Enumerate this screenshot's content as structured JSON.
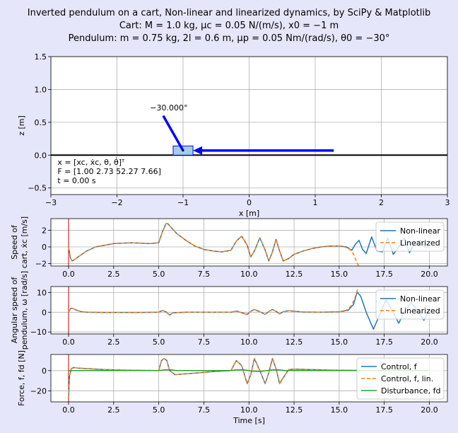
{
  "figure": {
    "title_lines": [
      "Inverted pendulum on a cart, Non-linear and linearized dynamics, by SciPy & Matplotlib",
      "Cart: M = 1.0 kg, μc = 0.05 N/(m/s), x0 = −1 m",
      "Pendulum: m = 0.75 kg, 2l = 0.6 m, μp = 0.05 Nm/(rad/s), θ0 = −30°"
    ],
    "background": "#e6e6fa"
  },
  "chart_data": [
    {
      "type": "scatter",
      "name": "scene",
      "xlabel": "x [m]",
      "ylabel": "z [m]",
      "xlim": [
        -3,
        3
      ],
      "ylim": [
        -0.6,
        1.5
      ],
      "xticks": [
        -3,
        -2,
        -1,
        0,
        1,
        2,
        3
      ],
      "yticks": [
        -0.5,
        0.0,
        0.5,
        1.0,
        1.5
      ],
      "xtick_labels": [
        "−3",
        "−2",
        "−1",
        "0",
        "1",
        "2",
        "3"
      ],
      "ytick_labels": [
        "−0.5",
        "0.0",
        "0.5",
        "1.0",
        "1.5"
      ],
      "grid": true,
      "cart": {
        "x": -1.0,
        "z": 0.07,
        "width": 0.3,
        "height": 0.14,
        "fill": "#a6cee3",
        "edge": "#0000ff"
      },
      "pendulum": {
        "pivot": [
          -1.0,
          0.07
        ],
        "tip": [
          -1.3,
          0.6
        ],
        "color": "#0000ff"
      },
      "angle_label": {
        "text": "−30.000°",
        "x": -1.5,
        "z": 0.68
      },
      "force_arrow": {
        "from": [
          1.28,
          0.07
        ],
        "to": [
          -0.85,
          0.07
        ],
        "color": "#0000ff"
      },
      "state_text": [
        "x = [xc, ẋc, θ, θ̇]ᵀ",
        "F = [1.00 2.73 52.27 7.66]",
        "t = 0.00 s"
      ],
      "state_text_pos": [
        -2.9,
        -0.15
      ]
    },
    {
      "type": "line",
      "name": "cart-speed",
      "ylabel_lines": [
        "Speed of",
        "cart, ẋc [m/s]"
      ],
      "xlim": [
        -0.98,
        21.0
      ],
      "ylim": [
        -2.3,
        3.4
      ],
      "xticks": [
        0.0,
        2.5,
        5.0,
        7.5,
        10.0,
        12.5,
        15.0,
        17.5,
        20.0
      ],
      "xtick_labels": [
        "0.0",
        "2.5",
        "5.0",
        "7.5",
        "10.0",
        "12.5",
        "15.0",
        "17.5",
        "20.0"
      ],
      "yticks": [
        -2,
        0,
        2
      ],
      "ytick_labels": [
        "−2",
        "0",
        "2"
      ],
      "grid": true,
      "legend": "right",
      "vline": 0,
      "series": [
        {
          "name": "Non-linear",
          "color": "#1f77b4",
          "dash": "solid",
          "x": [
            0,
            0.1,
            0.2,
            0.35,
            0.6,
            1.0,
            1.5,
            2.5,
            3.5,
            4.5,
            5.0,
            5.2,
            5.4,
            5.5,
            5.7,
            6.0,
            6.5,
            7.0,
            7.5,
            8.0,
            8.5,
            9.0,
            9.3,
            9.6,
            9.9,
            10.1,
            10.3,
            10.6,
            10.9,
            11.1,
            11.3,
            11.5,
            11.7,
            11.9,
            12.2,
            12.5,
            13.0,
            13.5,
            14.0,
            14.5,
            15.0,
            15.4,
            15.7,
            15.9,
            16.1,
            16.3,
            16.5,
            16.8,
            17.1,
            17.4,
            17.7,
            18.0,
            18.3,
            18.6,
            18.9,
            19.2,
            19.5,
            19.8,
            20.0
          ],
          "y": [
            0,
            -1.3,
            -1.7,
            -1.5,
            -1.1,
            -0.5,
            0.0,
            0.4,
            0.5,
            0.4,
            0.5,
            1.8,
            2.8,
            2.8,
            2.3,
            1.6,
            0.8,
            0.1,
            -0.3,
            -0.5,
            -0.6,
            -0.4,
            0.7,
            1.3,
            0.2,
            -1.2,
            -0.5,
            1.1,
            -0.4,
            -1.7,
            -0.6,
            0.9,
            -0.5,
            -1.7,
            -1.4,
            -0.9,
            -0.5,
            -0.2,
            0.0,
            0.1,
            0.1,
            0.0,
            -0.4,
            0.3,
            0.8,
            -0.3,
            -0.8,
            1.2,
            -0.5,
            -0.6,
            1.1,
            -0.9,
            0.0,
            1.0,
            -0.7,
            0.5,
            0.8,
            -0.1,
            0.1
          ]
        },
        {
          "name": "Linearized",
          "color": "#ff7f0e",
          "dash": "5,3",
          "x": [
            0,
            0.1,
            0.2,
            0.35,
            0.6,
            1.0,
            1.5,
            2.5,
            3.5,
            4.5,
            5.0,
            5.2,
            5.4,
            5.5,
            5.7,
            6.0,
            6.5,
            7.0,
            7.5,
            8.0,
            8.5,
            9.0,
            9.3,
            9.6,
            9.9,
            10.1,
            10.3,
            10.6,
            10.9,
            11.1,
            11.3,
            11.5,
            11.7,
            11.9,
            12.2,
            12.5,
            13.0,
            13.5,
            14.0,
            14.5,
            15.0,
            15.3,
            15.6,
            15.8,
            15.95,
            16.1
          ],
          "y": [
            0,
            -1.3,
            -1.7,
            -1.5,
            -1.1,
            -0.5,
            0.0,
            0.4,
            0.5,
            0.4,
            0.5,
            1.8,
            2.8,
            2.8,
            2.3,
            1.6,
            0.8,
            0.1,
            -0.3,
            -0.5,
            -0.6,
            -0.4,
            0.7,
            1.3,
            0.2,
            -1.2,
            -0.5,
            1.1,
            -0.4,
            -1.7,
            -0.6,
            0.9,
            -0.5,
            -1.7,
            -1.4,
            -0.9,
            -0.5,
            -0.2,
            0.0,
            0.1,
            0.1,
            0.0,
            -0.3,
            -0.9,
            -1.7,
            -2.4
          ]
        }
      ]
    },
    {
      "type": "line",
      "name": "pendulum-speed",
      "ylabel_lines": [
        "Angular speed of",
        "pendulum, ω [rad/s]"
      ],
      "xlim": [
        -0.98,
        21.0
      ],
      "ylim": [
        -11,
        13
      ],
      "xticks": [
        0.0,
        2.5,
        5.0,
        7.5,
        10.0,
        12.5,
        15.0,
        17.5,
        20.0
      ],
      "xtick_labels": [
        "0.0",
        "2.5",
        "5.0",
        "7.5",
        "10.0",
        "12.5",
        "15.0",
        "17.5",
        "20.0"
      ],
      "yticks": [
        -10,
        0,
        10
      ],
      "ytick_labels": [
        "−10",
        "0",
        "10"
      ],
      "grid": true,
      "legend": "right",
      "vline": 0,
      "series": [
        {
          "name": "Non-linear",
          "color": "#1f77b4",
          "dash": "solid",
          "x": [
            0,
            0.1,
            0.2,
            0.4,
            0.7,
            1.0,
            2.0,
            4.0,
            5.0,
            5.2,
            5.4,
            5.6,
            5.8,
            6.5,
            9.0,
            9.3,
            9.6,
            9.9,
            10.1,
            10.3,
            10.6,
            10.9,
            11.1,
            11.3,
            11.5,
            11.7,
            11.9,
            12.2,
            13.0,
            14.0,
            15.0,
            15.5,
            15.8,
            16.0,
            16.2,
            16.5,
            16.9,
            17.3,
            17.6,
            18.0,
            18.3,
            18.6,
            19.0,
            19.4,
            19.7,
            20.0
          ],
          "y": [
            0,
            1.8,
            2.0,
            1.2,
            0.3,
            0.0,
            -0.1,
            -0.1,
            0.0,
            0.9,
            0.2,
            -1.4,
            -0.3,
            0.0,
            0.0,
            0.6,
            -0.3,
            -1.1,
            0.5,
            1.4,
            0.3,
            -1.1,
            0.4,
            1.4,
            0.5,
            -0.9,
            0.3,
            0.8,
            0.1,
            0.0,
            0.2,
            1.0,
            4.0,
            10.2,
            8.0,
            0.0,
            -8.6,
            0.0,
            6.2,
            0.0,
            -5.6,
            0.0,
            5.0,
            0.0,
            -4.1,
            1.5
          ]
        },
        {
          "name": "Linearized",
          "color": "#ff7f0e",
          "dash": "5,3",
          "x": [
            0,
            0.1,
            0.2,
            0.4,
            0.7,
            1.0,
            2.0,
            4.0,
            5.0,
            5.2,
            5.4,
            5.6,
            5.8,
            6.5,
            9.0,
            9.3,
            9.6,
            9.9,
            10.1,
            10.3,
            10.6,
            10.9,
            11.1,
            11.3,
            11.5,
            11.7,
            11.9,
            12.2,
            13.0,
            14.0,
            15.0,
            15.4,
            15.7,
            15.9,
            16.05
          ],
          "y": [
            0,
            1.8,
            2.0,
            1.2,
            0.3,
            0.0,
            -0.1,
            -0.1,
            0.0,
            0.9,
            0.2,
            -1.4,
            -0.3,
            0.0,
            0.0,
            0.6,
            -0.3,
            -1.1,
            0.5,
            1.4,
            0.3,
            -1.1,
            0.4,
            1.4,
            0.5,
            -0.9,
            0.3,
            0.8,
            0.1,
            0.0,
            0.2,
            1.0,
            3.5,
            8.0,
            12.5
          ]
        }
      ]
    },
    {
      "type": "line",
      "name": "force",
      "ylabel": "Force, f, fd [N]",
      "xlabel": "Time [s]",
      "xlim": [
        -0.98,
        21.0
      ],
      "ylim": [
        -31,
        16
      ],
      "xticks": [
        0.0,
        2.5,
        5.0,
        7.5,
        10.0,
        12.5,
        15.0,
        17.5,
        20.0
      ],
      "xtick_labels": [
        "0.0",
        "2.5",
        "5.0",
        "7.5",
        "10.0",
        "12.5",
        "15.0",
        "17.5",
        "20.0"
      ],
      "yticks": [
        -20,
        0
      ],
      "ytick_labels": [
        "−20",
        "0"
      ],
      "grid": true,
      "legend": "right",
      "vline": 0,
      "series": [
        {
          "name": "Control, f",
          "color": "#1f77b4",
          "dash": "solid",
          "x": [
            0,
            0.05,
            0.15,
            0.3,
            0.5,
            1.0,
            2.0,
            3.0,
            4.0,
            5.0,
            5.15,
            5.3,
            5.45,
            5.6,
            5.9,
            6.3,
            7.0,
            8.0,
            9.0,
            9.3,
            9.6,
            9.9,
            10.1,
            10.3,
            10.6,
            10.9,
            11.1,
            11.3,
            11.5,
            11.7,
            11.9,
            12.2,
            12.5,
            13.5,
            14.5,
            15.5,
            16.5,
            17.5,
            18.5,
            19.5,
            20.0
          ],
          "y": [
            -28,
            -6,
            2,
            3,
            2.5,
            2,
            1,
            0.5,
            0.2,
            0,
            10,
            12,
            10,
            0,
            -4,
            -3.5,
            -2.5,
            -1,
            0,
            10,
            5,
            -13,
            -4,
            12,
            0,
            -13,
            -2,
            12,
            2,
            -13,
            -7,
            1,
            1.5,
            1,
            0.5,
            0.3,
            0,
            0,
            0,
            0,
            0
          ]
        },
        {
          "name": "Control, f, lin.",
          "color": "#ff7f0e",
          "dash": "5,3",
          "x": [
            0,
            0.05,
            0.15,
            0.3,
            0.5,
            1.0,
            2.0,
            3.0,
            4.0,
            5.0,
            5.15,
            5.3,
            5.45,
            5.6,
            5.9,
            6.3,
            7.0,
            8.0,
            9.0,
            9.3,
            9.6,
            9.9,
            10.1,
            10.3,
            10.6,
            10.9,
            11.1,
            11.3,
            11.5,
            11.7,
            11.9,
            12.2,
            12.5,
            13.5,
            14.5,
            15.5,
            16.0
          ],
          "y": [
            -28,
            -6,
            2,
            3,
            2.5,
            2,
            1,
            0.5,
            0.2,
            0,
            10,
            12,
            10,
            0,
            -4,
            -3.5,
            -2.5,
            -1,
            0,
            10,
            5,
            -13,
            -4,
            12,
            0,
            -13,
            -2,
            12,
            2,
            -13,
            -7,
            1,
            1.5,
            1,
            0.5,
            0.3,
            0.2
          ]
        },
        {
          "name": "Disturbance, fd",
          "color": "#2ca02c",
          "dash": "solid",
          "x": [
            0,
            5.0,
            5.3,
            5.7,
            6.0,
            9.0,
            9.3,
            9.7,
            10.0,
            10.3,
            10.7,
            11.0,
            11.3,
            11.7,
            12.0,
            20.0
          ],
          "y": [
            0,
            0,
            0.8,
            0.8,
            0,
            0,
            0.8,
            0.8,
            0,
            -0.8,
            -0.8,
            0,
            0.8,
            0.8,
            0,
            0
          ]
        }
      ]
    }
  ]
}
